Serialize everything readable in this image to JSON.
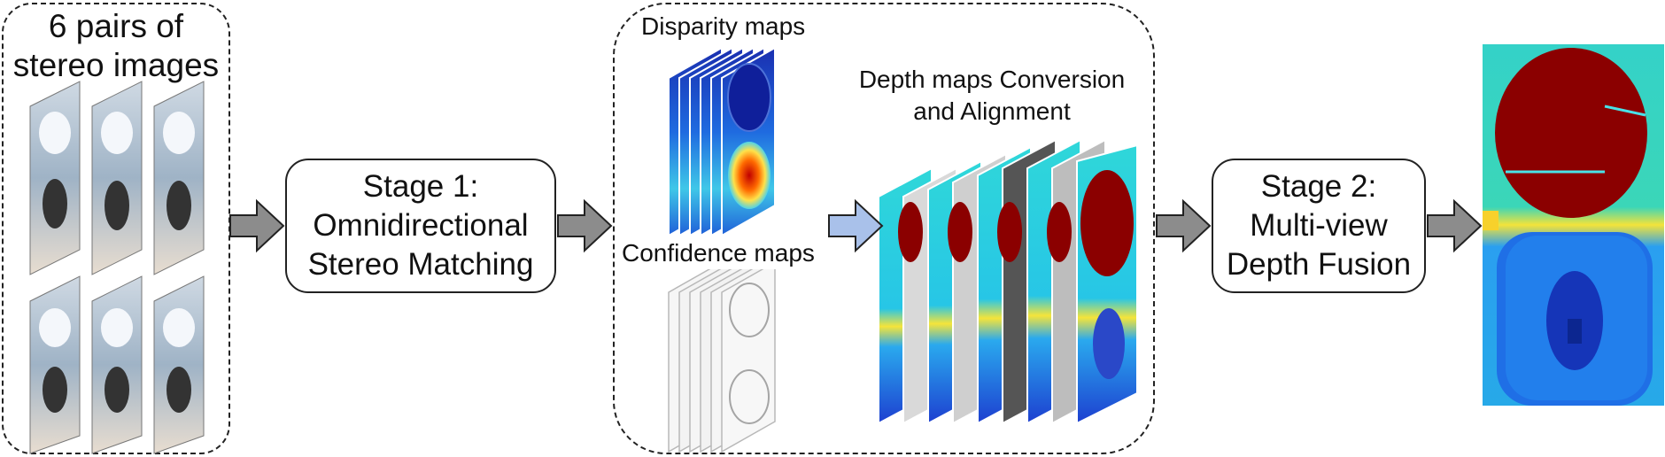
{
  "input": {
    "title_line1": "6 pairs of",
    "title_line2": "stereo images"
  },
  "stage1": {
    "line1": "Stage 1:",
    "line2": "Omnidirectional",
    "line3": "Stereo Matching"
  },
  "maps": {
    "disparity_label": "Disparity maps",
    "confidence_label": "Confidence maps"
  },
  "conversion": {
    "line1": "Depth maps Conversion",
    "line2": "and Alignment"
  },
  "stage2": {
    "line1": "Stage 2:",
    "line2": "Multi-view",
    "line3": "Depth Fusion"
  },
  "colors": {
    "arrow_fill": "#8c8c8c",
    "arrow_blue": "#a9c1ea",
    "depth_red": "#8b0000",
    "depth_blue": "#1a4fd6",
    "depth_cyan": "#29d3e6"
  }
}
